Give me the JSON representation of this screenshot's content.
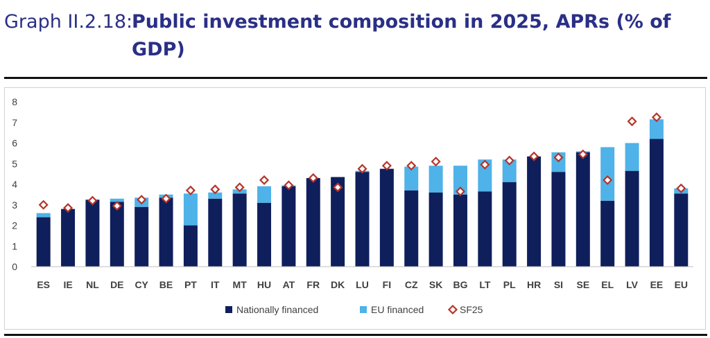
{
  "header": {
    "graph_id": "Graph II.2.18:",
    "title": "Public investment composition in 2025, APRs (% of GDP)"
  },
  "colors": {
    "title": "#2a2f86",
    "national": "#0f1f5c",
    "eu": "#4fb2e8",
    "sf25_stroke": "#b5342a"
  },
  "chart_data": {
    "type": "bar",
    "stacked": true,
    "categories": [
      "ES",
      "IE",
      "NL",
      "DE",
      "CY",
      "BE",
      "PT",
      "IT",
      "MT",
      "HU",
      "AT",
      "FR",
      "DK",
      "LU",
      "FI",
      "CZ",
      "SK",
      "BG",
      "LT",
      "PL",
      "HR",
      "SI",
      "SE",
      "EL",
      "LV",
      "EE",
      "EU"
    ],
    "series": [
      {
        "name": "Nationally financed",
        "kind": "bar",
        "color": "#0f1f5c",
        "values": [
          2.4,
          2.8,
          3.25,
          3.15,
          2.9,
          3.35,
          2.0,
          3.3,
          3.55,
          3.1,
          3.9,
          4.3,
          4.35,
          4.6,
          4.75,
          3.7,
          3.6,
          3.5,
          3.65,
          4.1,
          5.35,
          4.6,
          5.55,
          3.2,
          4.65,
          6.2,
          3.55
        ]
      },
      {
        "name": "EU financed",
        "kind": "bar",
        "color": "#4fb2e8",
        "values": [
          0.2,
          0.0,
          0.0,
          0.15,
          0.45,
          0.15,
          1.55,
          0.3,
          0.2,
          0.8,
          0.05,
          0.0,
          0.0,
          0.05,
          0.0,
          1.15,
          1.3,
          1.4,
          1.55,
          1.1,
          0.0,
          0.95,
          0.05,
          2.6,
          1.35,
          0.95,
          0.25
        ]
      },
      {
        "name": "SF25",
        "kind": "marker",
        "color": "#b5342a",
        "values": [
          3.0,
          2.85,
          3.2,
          2.95,
          3.25,
          3.3,
          3.7,
          3.75,
          3.85,
          4.2,
          3.95,
          4.3,
          3.85,
          4.75,
          4.9,
          4.9,
          5.1,
          3.65,
          4.95,
          5.15,
          5.35,
          5.3,
          5.45,
          4.2,
          7.05,
          7.25,
          3.8
        ]
      }
    ],
    "ylim": [
      0,
      8
    ],
    "yticks": [
      "0",
      "1",
      "2",
      "3",
      "4",
      "5",
      "6",
      "7",
      "8"
    ],
    "grid": false,
    "legend_position": "bottom"
  }
}
